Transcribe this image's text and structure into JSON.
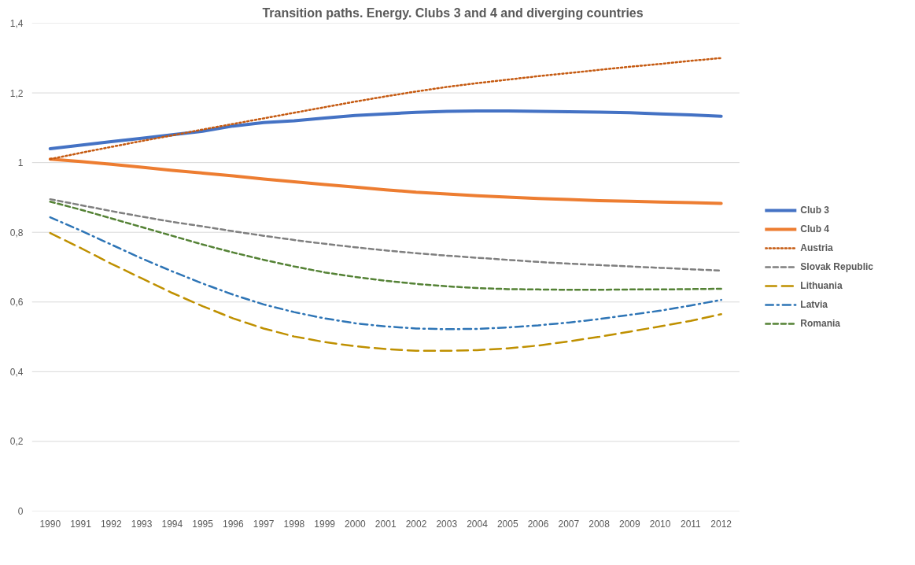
{
  "chart_data": {
    "type": "line",
    "title": "Transition paths. Energy. Clubs 3 and 4 and diverging countries",
    "categories": [
      "1990",
      "1991",
      "1992",
      "1993",
      "1994",
      "1995",
      "1996",
      "1997",
      "1998",
      "1999",
      "2000",
      "2001",
      "2002",
      "2003",
      "2004",
      "2005",
      "2006",
      "2007",
      "2008",
      "2009",
      "2010",
      "2011",
      "2012"
    ],
    "ylim": [
      0,
      1.4
    ],
    "yticks": [
      0,
      {
        "value": 0.2,
        "label": "0,2"
      },
      {
        "value": 0.4,
        "label": "0,4"
      },
      {
        "value": 0.6,
        "label": "0,6"
      },
      {
        "value": 0.8,
        "label": "0,8"
      },
      1,
      {
        "value": 1.2,
        "label": "1,2"
      },
      {
        "value": 1.4,
        "label": "1,4"
      }
    ],
    "grid": "y",
    "legend": "right",
    "marker": "none",
    "series": [
      {
        "name": "Club 3",
        "color": "#4472c4",
        "line_style": "solid",
        "values": [
          1.04,
          1.05,
          1.06,
          1.07,
          1.08,
          1.09,
          1.105,
          1.115,
          1.12,
          1.128,
          1.135,
          1.14,
          1.144,
          1.147,
          1.148,
          1.148,
          1.147,
          1.146,
          1.145,
          1.143,
          1.14,
          1.137,
          1.133
        ]
      },
      {
        "name": "Club 4",
        "color": "#ed7d31",
        "line_style": "solid",
        "values": [
          1.01,
          1.003,
          0.995,
          0.987,
          0.978,
          0.97,
          0.962,
          0.953,
          0.945,
          0.937,
          0.93,
          0.922,
          0.915,
          0.91,
          0.905,
          0.901,
          0.897,
          0.894,
          0.891,
          0.889,
          0.887,
          0.885,
          0.883
        ]
      },
      {
        "name": "Austria",
        "color": "#c55a11",
        "line_style": "dotted",
        "values": [
          1.01,
          1.028,
          1.045,
          1.062,
          1.078,
          1.095,
          1.111,
          1.127,
          1.143,
          1.159,
          1.175,
          1.19,
          1.204,
          1.217,
          1.228,
          1.238,
          1.248,
          1.257,
          1.266,
          1.275,
          1.283,
          1.292,
          1.3
        ]
      },
      {
        "name": "Slovak Republic",
        "color": "#7f7f7f",
        "line_style": "dashed",
        "values": [
          0.895,
          0.878,
          0.861,
          0.845,
          0.83,
          0.817,
          0.803,
          0.79,
          0.778,
          0.767,
          0.757,
          0.748,
          0.74,
          0.733,
          0.727,
          0.721,
          0.715,
          0.71,
          0.706,
          0.702,
          0.698,
          0.694,
          0.69
        ]
      },
      {
        "name": "Lithuania",
        "color": "#bf9000",
        "line_style": "longdash",
        "values": [
          0.798,
          0.755,
          0.71,
          0.668,
          0.626,
          0.588,
          0.553,
          0.524,
          0.501,
          0.485,
          0.473,
          0.465,
          0.46,
          0.46,
          0.462,
          0.467,
          0.475,
          0.487,
          0.5,
          0.515,
          0.53,
          0.546,
          0.565
        ]
      },
      {
        "name": "Latvia",
        "color": "#2e75b6",
        "line_style": "dashdot",
        "values": [
          0.843,
          0.805,
          0.765,
          0.725,
          0.688,
          0.653,
          0.621,
          0.593,
          0.571,
          0.553,
          0.539,
          0.53,
          0.524,
          0.522,
          0.523,
          0.527,
          0.533,
          0.541,
          0.551,
          0.563,
          0.575,
          0.59,
          0.606
        ]
      },
      {
        "name": "Romania",
        "color": "#548235",
        "line_style": "dashed",
        "values": [
          0.888,
          0.865,
          0.84,
          0.815,
          0.79,
          0.765,
          0.742,
          0.721,
          0.702,
          0.685,
          0.672,
          0.661,
          0.652,
          0.645,
          0.64,
          0.637,
          0.636,
          0.635,
          0.635,
          0.636,
          0.636,
          0.637,
          0.638
        ]
      }
    ]
  }
}
